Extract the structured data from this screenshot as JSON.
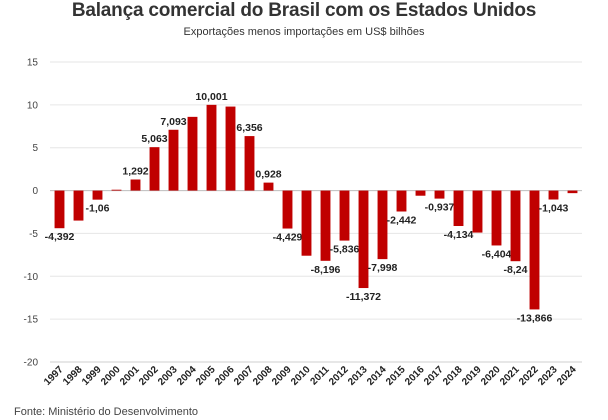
{
  "chart_data": {
    "type": "bar",
    "title": "Balança comercial do Brasil com os Estados Unidos",
    "subtitle": "Exportações menos importações em US$ bilhões",
    "source": "Fonte: Ministério do Desenvolvimento",
    "categories": [
      "1997",
      "1998",
      "1999",
      "2000",
      "2001",
      "2002",
      "2003",
      "2004",
      "2005",
      "2006",
      "2007",
      "2008",
      "2009",
      "2010",
      "2011",
      "2012",
      "2013",
      "2014",
      "2015",
      "2016",
      "2017",
      "2018",
      "2019",
      "2020",
      "2021",
      "2022",
      "2023",
      "2024"
    ],
    "values": [
      -4.392,
      -3.5,
      -1.06,
      0.1,
      1.292,
      5.063,
      7.093,
      8.6,
      10.001,
      9.8,
      6.356,
      0.928,
      -4.429,
      -7.6,
      -8.196,
      -5.836,
      -11.372,
      -7.998,
      -2.442,
      -0.6,
      -0.937,
      -4.134,
      -4.9,
      -6.404,
      -8.24,
      -13.866,
      -1.043,
      -0.3
    ],
    "data_labels": [
      "-4,392",
      "",
      "-1,06",
      "",
      "1,292",
      "5,063",
      "7,093",
      "",
      "10,001",
      "",
      "6,356",
      "0,928",
      "-4,429",
      "",
      "-8,196",
      "-5,836",
      "-11,372",
      "-7,998",
      "-2,442",
      "",
      "-0,937",
      "-4,134",
      "",
      "-6,404",
      "-8,24",
      "-13,866",
      "-1,043",
      ""
    ],
    "yticks": [
      "15",
      "10",
      "5",
      "0",
      "-5",
      "-10",
      "-15",
      "-20"
    ],
    "ylim": [
      -20,
      15
    ],
    "bar_color": "#c00000",
    "grid": true,
    "legend": "none"
  }
}
